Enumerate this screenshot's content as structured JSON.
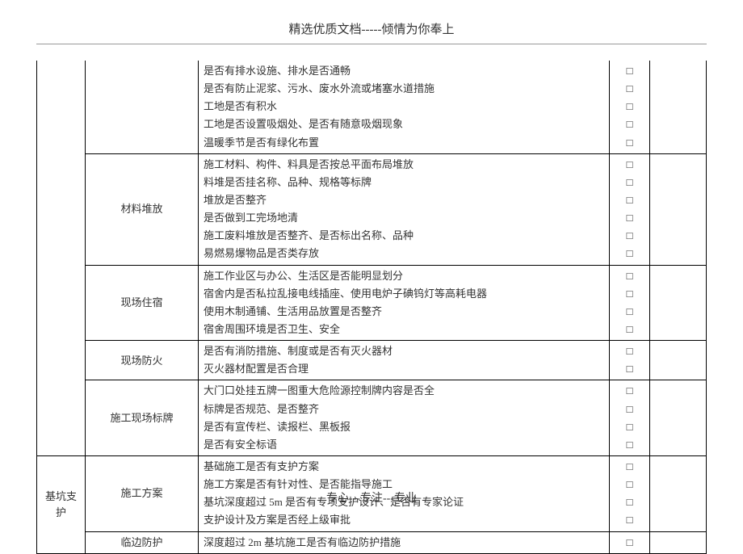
{
  "header": "精选优质文档-----倾情为你奉上",
  "footer": "专心---专注---专业",
  "checkbox_glyph": "□",
  "sections": [
    {
      "category": "",
      "rows": [
        {
          "subcategory": "",
          "items": [
            "是否有排水设施、排水是否通畅",
            "是否有防止泥浆、污水、废水外流或堵塞水道措施",
            "工地是否有积水",
            "工地是否设置吸烟处、是否有随意吸烟现象",
            "温暖季节是否有绿化布置"
          ]
        },
        {
          "subcategory": "材料堆放",
          "items": [
            "施工材料、构件、料具是否按总平面布局堆放",
            "料堆是否挂名称、品种、规格等标牌",
            "堆放是否整齐",
            "是否做到工完场地清",
            "施工废料堆放是否整齐、是否标出名称、品种",
            "易燃易爆物品是否类存放"
          ]
        },
        {
          "subcategory": "现场住宿",
          "items": [
            "施工作业区与办公、生活区是否能明显划分",
            "宿舍内是否私拉乱接电线插座、使用电炉子碘钨灯等高耗电器",
            "使用木制通铺、生活用品放置是否整齐",
            "宿舍周围环境是否卫生、安全"
          ]
        },
        {
          "subcategory": "现场防火",
          "items": [
            "是否有消防措施、制度或是否有灭火器材",
            "灭火器材配置是否合理"
          ]
        },
        {
          "subcategory": "施工现场标牌",
          "items": [
            "大门口处挂五牌一图重大危险源控制牌内容是否全",
            "标牌是否规范、是否整齐",
            "是否有宣传栏、读报栏、黑板报",
            "是否有安全标语"
          ]
        }
      ]
    },
    {
      "category": "基坑支护",
      "rows": [
        {
          "subcategory": "施工方案",
          "items": [
            "基础施工是否有支护方案",
            "施工方案是否有针对性、是否能指导施工",
            "基坑深度超过 5m 是否有专项支护设计、是否有专家论证",
            "支护设计及方案是否经上级审批"
          ]
        },
        {
          "subcategory": "临边防护",
          "items": [
            "深度超过 2m 基坑施工是否有临边防护措施"
          ]
        }
      ]
    }
  ]
}
